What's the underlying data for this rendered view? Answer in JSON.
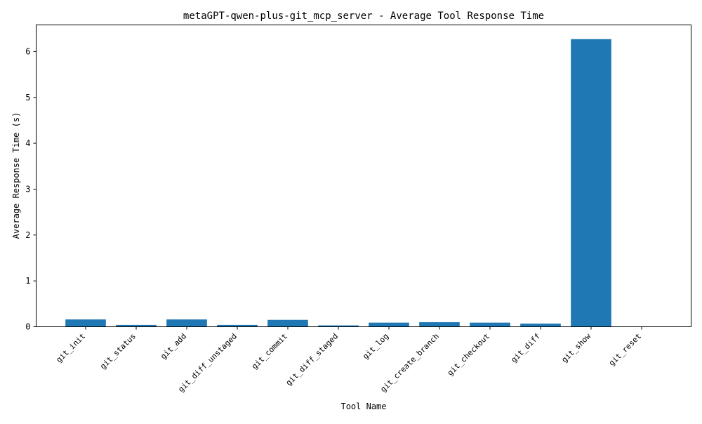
{
  "chart_data": {
    "type": "bar",
    "title": "metaGPT-qwen-plus-git_mcp_server - Average Tool Response Time",
    "xlabel": "Tool Name",
    "ylabel": "Average Response Time (s)",
    "categories": [
      "git_init",
      "git_status",
      "git_add",
      "git_diff_unstaged",
      "git_commit",
      "git_diff_staged",
      "git_log",
      "git_create_branch",
      "git_checkout",
      "git_diff",
      "git_show",
      "git_reset"
    ],
    "values": [
      0.16,
      0.04,
      0.16,
      0.04,
      0.15,
      0.03,
      0.09,
      0.1,
      0.09,
      0.07,
      6.27,
      0.0
    ],
    "ylim": [
      0,
      6.58
    ],
    "yticks": [
      0,
      1,
      2,
      3,
      4,
      5,
      6
    ],
    "bar_color": "#1f77b4",
    "grid": false,
    "legend": "none"
  }
}
